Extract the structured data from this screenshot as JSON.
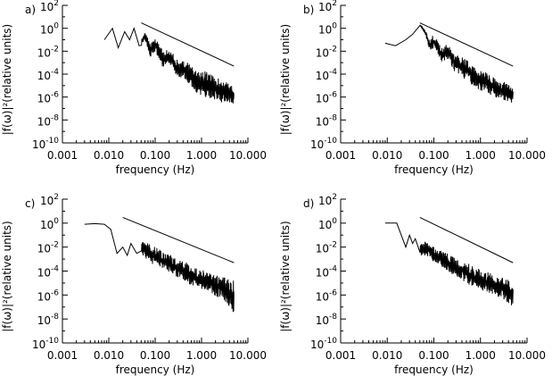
{
  "figure": {
    "xlabel": "frequency (Hz)",
    "ylabel": "|f(ω)|²(relative units)",
    "xtick_labels": [
      "0.001",
      "0.010",
      "0.100",
      "1.000",
      "10.000"
    ],
    "ytick_base": "10",
    "ytick_exponents": [
      "2",
      "0",
      "-2",
      "-4",
      "-6",
      "-8",
      "-10"
    ]
  },
  "chart_data": [
    {
      "type": "line",
      "panel_label": "a)",
      "x_scale": "log",
      "y_scale": "log",
      "xlim": [
        0.001,
        10
      ],
      "ylim": [
        1e-10,
        100
      ],
      "grid": false,
      "xlabel": "frequency (Hz)",
      "ylabel": "|f(ω)|²(relative units)",
      "series": [
        {
          "kind": "power_spectrum",
          "x": [
            0.008,
            0.012,
            0.016,
            0.022,
            0.028,
            0.035,
            0.045,
            0.06,
            0.08,
            0.1,
            0.15,
            0.2,
            0.3,
            0.5,
            0.8,
            1.2,
            2.0,
            3.0,
            5.0
          ],
          "y": [
            0.1,
            1,
            0.02,
            0.5,
            0.1,
            1,
            0.03,
            0.3,
            0.01,
            0.1,
            0.002,
            0.01,
            0.0005,
            0.0003,
            3e-05,
            4e-05,
            1e-05,
            5e-06,
            2e-06
          ],
          "y_min_envelope": [
            0.1,
            1,
            0.02,
            0.5,
            0.1,
            1,
            0.01,
            0.1,
            0.002,
            0.01,
            0.0003,
            0.001,
            5e-05,
            2e-05,
            2e-06,
            1e-06,
            5e-07,
            3e-07,
            2e-07
          ],
          "y_max_envelope": [
            0.1,
            1,
            0.02,
            0.5,
            0.1,
            1,
            0.05,
            0.5,
            0.05,
            0.2,
            0.01,
            0.02,
            0.002,
            0.001,
            0.0002,
            0.0002,
            5e-05,
            3e-05,
            1e-05
          ]
        },
        {
          "kind": "reference_line",
          "x": [
            0.05,
            5.0
          ],
          "y": [
            3,
            0.0005
          ]
        }
      ]
    },
    {
      "type": "line",
      "panel_label": "b)",
      "x_scale": "log",
      "y_scale": "log",
      "xlim": [
        0.001,
        10
      ],
      "ylim": [
        1e-10,
        100
      ],
      "grid": false,
      "xlabel": "frequency (Hz)",
      "ylabel": "|f(ω)|²(relative units)",
      "series": [
        {
          "kind": "power_spectrum",
          "x": [
            0.009,
            0.015,
            0.025,
            0.035,
            0.05,
            0.065,
            0.08,
            0.1,
            0.15,
            0.2,
            0.3,
            0.5,
            0.8,
            1.2,
            2.0,
            3.0,
            5.0
          ],
          "y": [
            0.05,
            0.03,
            0.1,
            0.3,
            2,
            0.5,
            0.05,
            0.1,
            0.005,
            0.01,
            0.001,
            0.0003,
            5e-05,
            3e-05,
            1e-05,
            5e-06,
            3e-06
          ],
          "y_min_envelope": [
            0.05,
            0.03,
            0.1,
            0.3,
            2,
            0.3,
            0.01,
            0.02,
            0.001,
            0.002,
            0.0001,
            3e-05,
            5e-06,
            3e-06,
            1e-06,
            5e-07,
            3e-07
          ],
          "y_max_envelope": [
            0.05,
            0.03,
            0.1,
            0.3,
            2,
            0.8,
            0.1,
            0.3,
            0.02,
            0.05,
            0.005,
            0.002,
            0.0003,
            0.0002,
            5e-05,
            3e-05,
            1e-05
          ]
        },
        {
          "kind": "reference_line",
          "x": [
            0.05,
            5.0
          ],
          "y": [
            3,
            0.0005
          ]
        }
      ]
    },
    {
      "type": "line",
      "panel_label": "c)",
      "x_scale": "log",
      "y_scale": "log",
      "xlim": [
        0.001,
        10
      ],
      "ylim": [
        1e-10,
        100
      ],
      "grid": false,
      "xlabel": "frequency (Hz)",
      "ylabel": "|f(ω)|²(relative units)",
      "series": [
        {
          "kind": "power_spectrum",
          "x": [
            0.003,
            0.005,
            0.008,
            0.011,
            0.015,
            0.02,
            0.025,
            0.03,
            0.04,
            0.05,
            0.07,
            0.1,
            0.15,
            0.2,
            0.3,
            0.5,
            0.8,
            1.2,
            2.0,
            3.0,
            5.0
          ],
          "y": [
            0.8,
            0.9,
            0.8,
            0.3,
            0.003,
            0.01,
            0.002,
            0.02,
            0.003,
            0.02,
            0.005,
            0.003,
            0.001,
            0.0008,
            0.0003,
            0.0001,
            3e-05,
            2e-05,
            8e-06,
            5e-06,
            2e-06
          ],
          "y_min_envelope": [
            0.8,
            0.9,
            0.8,
            0.3,
            0.003,
            0.01,
            0.002,
            0.02,
            0.0008,
            0.003,
            0.0005,
            0.0003,
            0.0001,
            8e-05,
            3e-05,
            1e-05,
            3e-06,
            2e-06,
            8e-07,
            5e-07,
            1e-08
          ],
          "y_max_envelope": [
            0.8,
            0.9,
            0.8,
            0.3,
            0.003,
            0.01,
            0.002,
            0.02,
            0.02,
            0.05,
            0.02,
            0.01,
            0.005,
            0.003,
            0.001,
            0.0005,
            0.0002,
            0.0001,
            5e-05,
            3e-05,
            2e-05
          ]
        },
        {
          "kind": "reference_line",
          "x": [
            0.02,
            5.0
          ],
          "y": [
            3,
            0.0005
          ]
        }
      ]
    },
    {
      "type": "line",
      "panel_label": "d)",
      "x_scale": "log",
      "y_scale": "log",
      "xlim": [
        0.001,
        10
      ],
      "ylim": [
        1e-10,
        100
      ],
      "grid": false,
      "xlabel": "frequency (Hz)",
      "ylabel": "|f(ω)|²(relative units)",
      "series": [
        {
          "kind": "power_spectrum",
          "x": [
            0.009,
            0.013,
            0.016,
            0.02,
            0.025,
            0.03,
            0.035,
            0.04,
            0.05,
            0.07,
            0.1,
            0.15,
            0.2,
            0.3,
            0.5,
            0.8,
            1.2,
            2.0,
            3.0,
            5.0
          ],
          "y": [
            1,
            1,
            1,
            0.1,
            0.01,
            0.1,
            0.02,
            0.05,
            0.005,
            0.01,
            0.003,
            0.001,
            0.0008,
            0.0003,
            0.0001,
            3e-05,
            2e-05,
            1e-05,
            5e-06,
            3e-06
          ],
          "y_min_envelope": [
            1,
            1,
            1,
            0.1,
            0.01,
            0.1,
            0.02,
            0.05,
            0.002,
            0.002,
            0.0005,
            0.0002,
            0.0001,
            3e-05,
            1e-05,
            3e-06,
            2e-06,
            1e-06,
            5e-07,
            1e-07
          ],
          "y_max_envelope": [
            1,
            1,
            1,
            0.1,
            0.01,
            0.1,
            0.02,
            0.05,
            0.02,
            0.03,
            0.01,
            0.005,
            0.003,
            0.001,
            0.0005,
            0.0002,
            0.0001,
            5e-05,
            3e-05,
            2e-05
          ]
        },
        {
          "kind": "reference_line",
          "x": [
            0.05,
            5.0
          ],
          "y": [
            3,
            0.0005
          ]
        }
      ]
    }
  ]
}
